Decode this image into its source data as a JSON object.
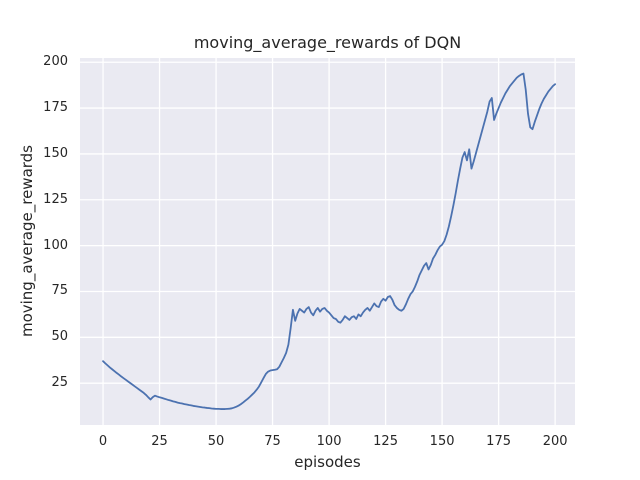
{
  "chart_data": {
    "type": "line",
    "title": "moving_average_rewards of DQN",
    "xlabel": "episodes",
    "ylabel": "moving_average_rewards",
    "series_name": "moving_average_rewards",
    "x_start": 0,
    "x_step": 1,
    "values": [
      37.0,
      35.8,
      34.7,
      33.6,
      32.6,
      31.6,
      30.6,
      29.7,
      28.7,
      27.8,
      26.9,
      26.0,
      25.1,
      24.2,
      23.3,
      22.4,
      21.5,
      20.6,
      19.7,
      18.6,
      17.3,
      16.1,
      17.4,
      18.2,
      17.7,
      17.3,
      17.0,
      16.6,
      16.2,
      15.8,
      15.5,
      15.1,
      14.8,
      14.4,
      14.1,
      13.9,
      13.6,
      13.4,
      13.1,
      12.9,
      12.6,
      12.4,
      12.2,
      12.0,
      11.8,
      11.7,
      11.5,
      11.4,
      11.2,
      11.1,
      11.0,
      11.0,
      10.9,
      10.9,
      10.9,
      11.0,
      11.1,
      11.3,
      11.7,
      12.2,
      12.8,
      13.6,
      14.5,
      15.5,
      16.5,
      17.6,
      18.8,
      20.0,
      21.5,
      23.2,
      25.5,
      27.8,
      30.0,
      31.3,
      31.9,
      32.1,
      32.3,
      32.6,
      34.0,
      36.4,
      38.8,
      41.5,
      46.0,
      55.0,
      65.0,
      59.0,
      63.0,
      65.5,
      64.5,
      63.5,
      65.5,
      66.5,
      63.5,
      62.0,
      64.5,
      66.0,
      64.0,
      65.5,
      66.0,
      64.5,
      63.5,
      62.0,
      60.5,
      60.0,
      58.5,
      58.0,
      59.5,
      61.5,
      60.5,
      59.5,
      61.0,
      61.5,
      60.0,
      62.5,
      61.5,
      63.5,
      65.0,
      66.0,
      64.5,
      66.5,
      68.5,
      67.0,
      66.5,
      69.5,
      71.0,
      70.0,
      72.0,
      72.5,
      70.5,
      67.5,
      66.0,
      65.0,
      64.5,
      65.5,
      68.0,
      71.0,
      73.5,
      75.0,
      77.5,
      80.5,
      84.0,
      86.5,
      89.0,
      90.5,
      87.0,
      89.5,
      93.0,
      95.0,
      97.5,
      99.5,
      100.5,
      102.5,
      106.0,
      110.5,
      116.0,
      122.0,
      128.5,
      135.5,
      142.0,
      148.0,
      151.0,
      146.5,
      152.5,
      142.0,
      146.0,
      150.5,
      155.0,
      159.5,
      164.0,
      168.5,
      173.0,
      178.5,
      180.5,
      168.5,
      172.0,
      175.0,
      178.0,
      180.5,
      183.0,
      185.0,
      187.0,
      188.5,
      190.0,
      191.5,
      192.5,
      193.3,
      193.8,
      185.0,
      172.0,
      164.5,
      163.5,
      167.5,
      171.0,
      174.5,
      177.5,
      180.0,
      182.0,
      184.0,
      185.5,
      187.0,
      188.0
    ],
    "xlim": [
      -10.2,
      208.8
    ],
    "ylim": [
      2.2,
      202.3
    ],
    "xticks": [
      0,
      25,
      50,
      75,
      100,
      125,
      150,
      175,
      200
    ],
    "yticks": [
      25,
      50,
      75,
      100,
      125,
      150,
      175,
      200
    ],
    "grid": true,
    "legend_position": "none",
    "line_color": "#4C72B0",
    "plot_bg_color": "#EAEAF2",
    "grid_color": "#FFFFFF",
    "text_color": "#262626",
    "figure_bg_color": "#FFFFFF"
  }
}
